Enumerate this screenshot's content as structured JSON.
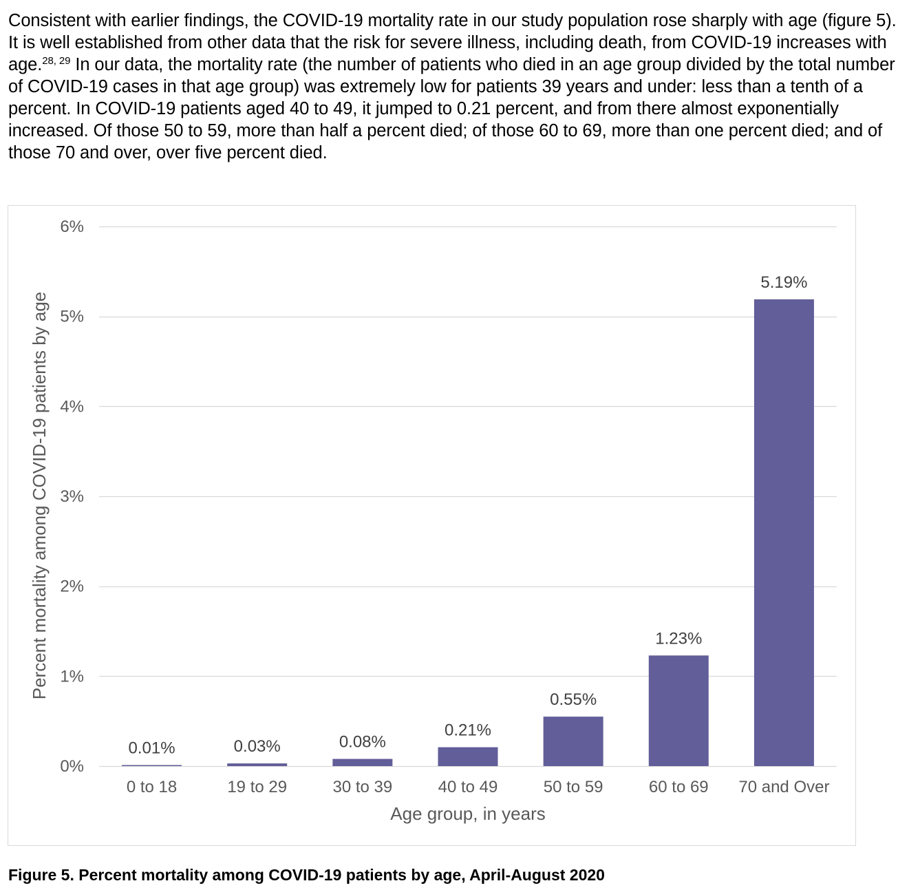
{
  "paragraph": {
    "part1": "Consistent with earlier findings, the COVID-19 mortality rate in our study population rose sharply with age (figure 5). It is well established from other data that the risk for severe illness, including death, from COVID-19 increases with age.",
    "citation": "28, 29",
    "part2": " In our data, the mortality rate (the number of patients who died in an age group divided by the total number of COVID-19 cases in that age group) was extremely low for patients 39 years and under: less than a tenth of a percent. In COVID-19 patients aged 40 to 49, it jumped to 0.21 percent, and from there almost exponentially increased. Of those 50 to 59, more than half a percent died; of those 60 to 69, more than one percent died; and of those 70 and over, over five percent died."
  },
  "caption": "Figure 5. Percent mortality among COVID-19 patients by age, April-August 2020",
  "chart_data": {
    "type": "bar",
    "categories": [
      "0 to 18",
      "19 to 29",
      "30 to 39",
      "40 to 49",
      "50 to 59",
      "60 to 69",
      "70 and Over"
    ],
    "values": [
      0.01,
      0.03,
      0.08,
      0.21,
      0.55,
      1.23,
      5.19
    ],
    "data_labels": [
      "0.01%",
      "0.03%",
      "0.08%",
      "0.21%",
      "0.55%",
      "1.23%",
      "5.19%"
    ],
    "title": "",
    "xlabel": "Age group, in years",
    "ylabel": "Percent mortality among COVID-19 patients by age",
    "ylim": [
      0,
      6
    ],
    "yticks": [
      0,
      1,
      2,
      3,
      4,
      5,
      6
    ],
    "ytick_labels": [
      "0%",
      "1%",
      "2%",
      "3%",
      "4%",
      "5%",
      "6%"
    ],
    "grid": true,
    "legend": "none",
    "bar_color": "#625e99",
    "gridline_color": "#d9d9d9"
  }
}
